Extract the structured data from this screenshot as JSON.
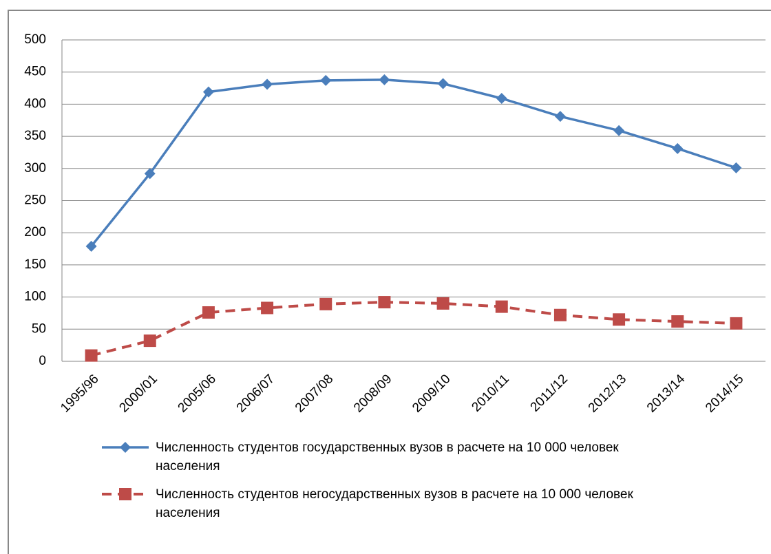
{
  "chart_data": {
    "type": "line",
    "categories": [
      "1995/96",
      "2000/01",
      "2005/06",
      "2006/07",
      "2007/08",
      "2008/09",
      "2009/10",
      "2010/11",
      "2011/12",
      "2012/13",
      "2013/14",
      "2014/15"
    ],
    "series": [
      {
        "name": "Численность студентов государственных вузов в расчете на 10 000 человек населения",
        "color": "#4a7ebb",
        "marker": "diamond",
        "dash": false,
        "values": [
          179,
          292,
          419,
          431,
          437,
          438,
          432,
          409,
          381,
          359,
          331,
          301
        ]
      },
      {
        "name": "Численность студентов негосударственных вузов в расчете на 10 000 человек населения",
        "color": "#be4b48",
        "marker": "square",
        "dash": true,
        "values": [
          9,
          32,
          76,
          83,
          89,
          92,
          90,
          85,
          72,
          65,
          62,
          59
        ]
      }
    ],
    "ylim": [
      0,
      500
    ],
    "yticks": [
      0,
      50,
      100,
      150,
      200,
      250,
      300,
      350,
      400,
      450,
      500
    ],
    "grid": true,
    "legend": "bottom"
  }
}
